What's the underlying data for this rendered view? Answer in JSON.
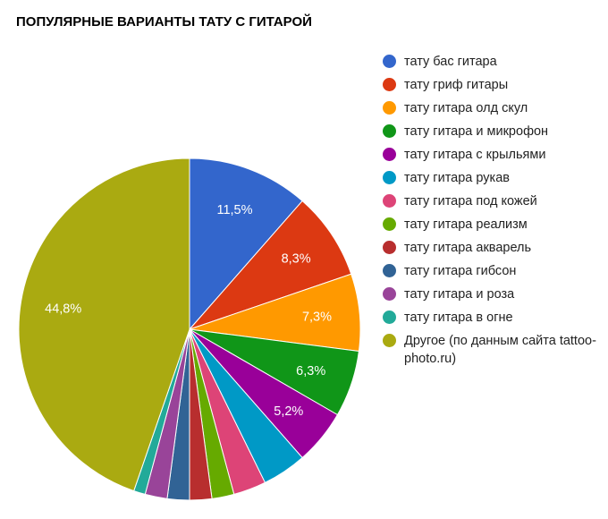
{
  "chart_data": {
    "type": "pie",
    "title": "ПОПУЛЯРНЫЕ ВАРИАНТЫ ТАТУ С ГИТАРОЙ",
    "slices": [
      {
        "name": "тату бас гитара",
        "value": 11.5,
        "label": "11,5%",
        "color": "#3366cc"
      },
      {
        "name": "тату гриф гитары",
        "value": 8.3,
        "label": "8,3%",
        "color": "#dc3912"
      },
      {
        "name": "тату гитара олд скул",
        "value": 7.3,
        "label": "7,3%",
        "color": "#ff9900"
      },
      {
        "name": "тату гитара и микрофон",
        "value": 6.3,
        "label": "6,3%",
        "color": "#109618"
      },
      {
        "name": "тату гитара с крыльями",
        "value": 5.2,
        "label": "5,2%",
        "color": "#990099"
      },
      {
        "name": "тату гитара рукав",
        "value": 4.2,
        "label": "",
        "color": "#0099c6"
      },
      {
        "name": "тату гитара под кожей",
        "value": 3.1,
        "label": "",
        "color": "#dd4477"
      },
      {
        "name": "тату гитара реализм",
        "value": 2.1,
        "label": "",
        "color": "#66aa00"
      },
      {
        "name": "тату гитара акварель",
        "value": 2.1,
        "label": "",
        "color": "#b82e2e"
      },
      {
        "name": "тату гитара гибсон",
        "value": 2.1,
        "label": "",
        "color": "#316395"
      },
      {
        "name": "тату гитара и роза",
        "value": 2.1,
        "label": "",
        "color": "#994499"
      },
      {
        "name": "тату гитара в огне",
        "value": 1.1,
        "label": "",
        "color": "#22aa99"
      },
      {
        "name": "Другое (по данным сайта tattoo-photo.ru)",
        "value": 44.8,
        "label": "44,8%",
        "color": "#aaaa11"
      }
    ],
    "legend_position": "right",
    "start_angle": "12 o'clock, clockwise"
  }
}
